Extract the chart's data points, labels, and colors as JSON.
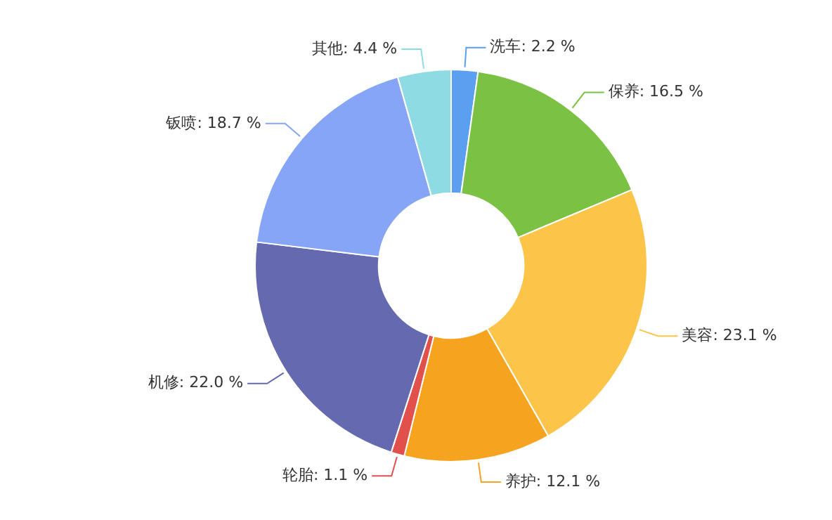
{
  "chart_data": {
    "type": "donut",
    "categories": [
      "洗车",
      "保养",
      "美容",
      "养护",
      "轮胎",
      "机修",
      "钣喷",
      "其他"
    ],
    "values": [
      2.2,
      16.5,
      23.1,
      12.1,
      1.1,
      22.0,
      18.7,
      4.4
    ],
    "value_labels": [
      "2.2 %",
      "16.5 %",
      "23.1 %",
      "12.1 %",
      "1.1 %",
      "22.0 %",
      "18.7 %",
      "4.4 %"
    ],
    "colors": [
      "#5a9ff0",
      "#7bc143",
      "#fcc549",
      "#f6a31f",
      "#e2504c",
      "#6469b0",
      "#87a5f6",
      "#8fdbe4"
    ],
    "legend": false
  }
}
